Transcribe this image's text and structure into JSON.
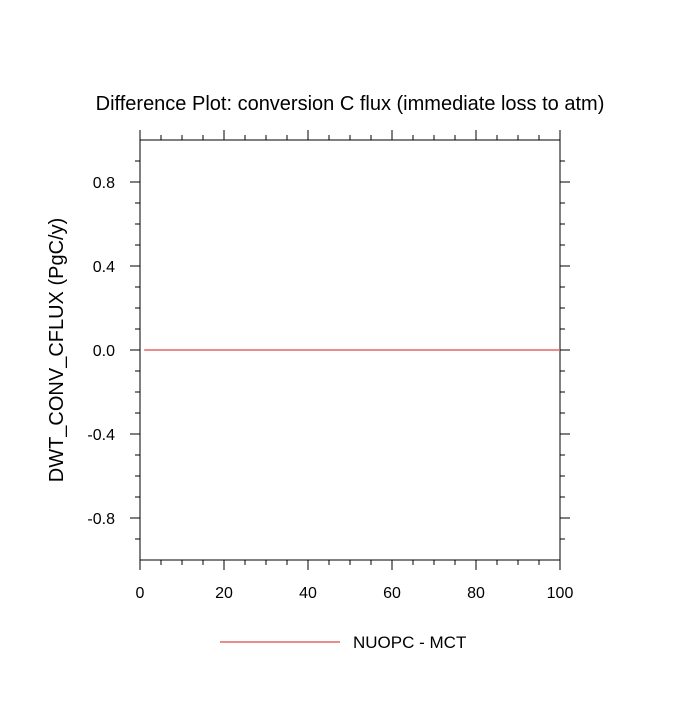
{
  "chart_data": {
    "type": "line",
    "title": "Difference Plot: conversion C flux (immediate loss to atm)",
    "xlabel": "",
    "ylabel": "DWT_CONV_CFLUX  (PgC/y)",
    "xlim": [
      0,
      100
    ],
    "ylim": [
      -1.0,
      1.0
    ],
    "x_ticks": [
      0,
      20,
      40,
      60,
      80,
      100
    ],
    "x_tick_labels": [
      "0",
      "20",
      "40",
      "60",
      "80",
      "100"
    ],
    "y_ticks": [
      -0.8,
      -0.4,
      0.0,
      0.4,
      0.8
    ],
    "y_tick_labels": [
      "-0.8",
      "-0.4",
      "0.0",
      "0.4",
      "0.8"
    ],
    "grid": false,
    "legend_position": "bottom-center",
    "series": [
      {
        "name": "NUOPC - MCT",
        "color": "#e06666",
        "x": [
          1,
          100
        ],
        "y": [
          0.0,
          0.0
        ]
      }
    ]
  }
}
